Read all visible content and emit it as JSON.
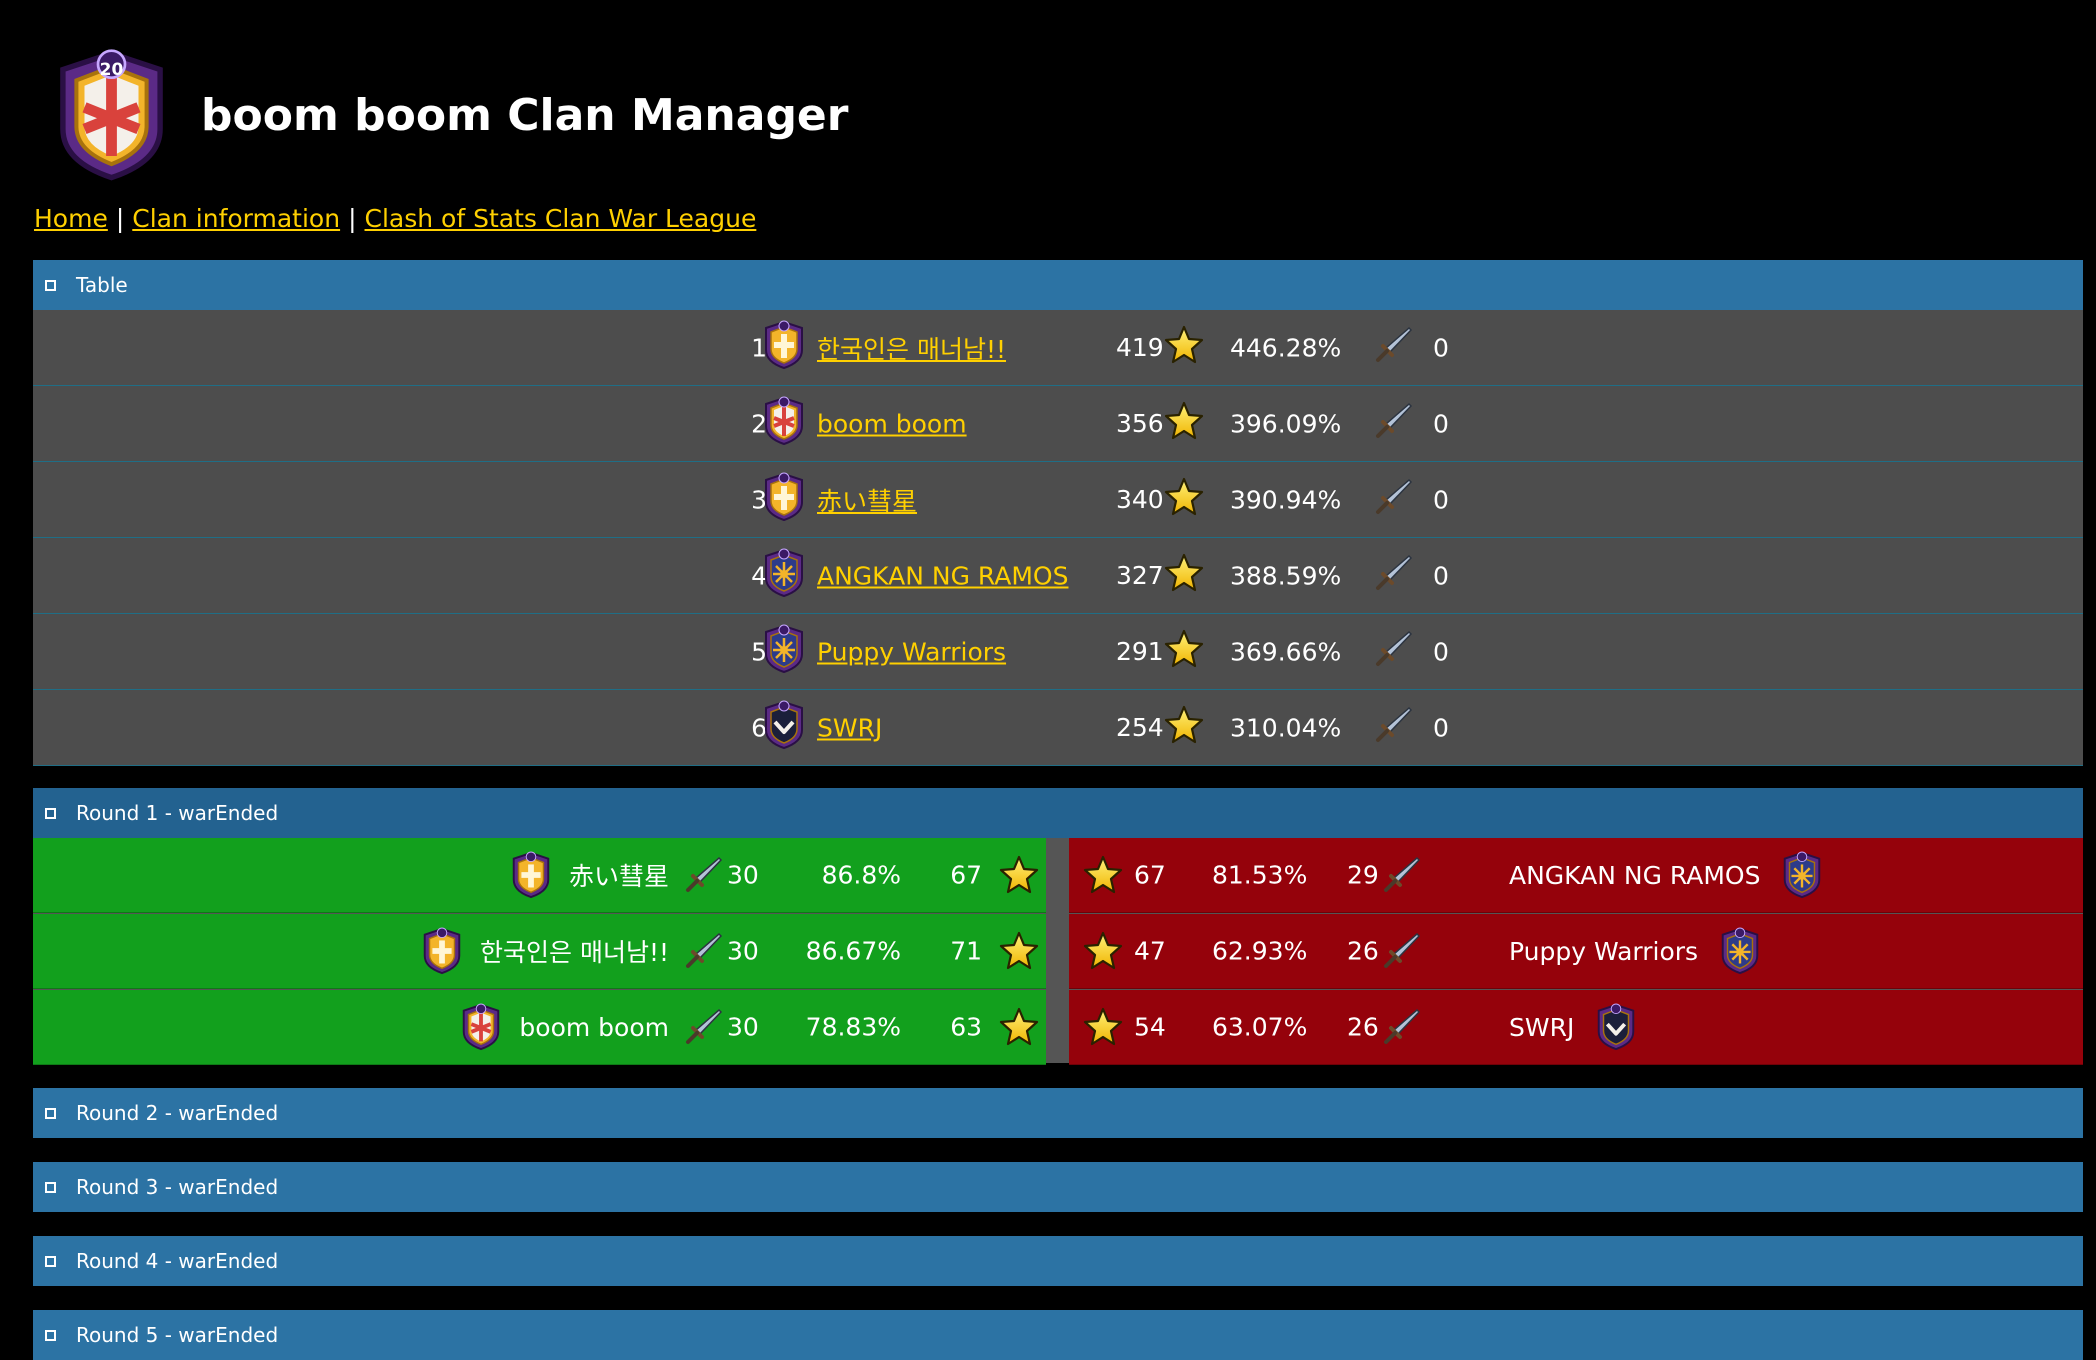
{
  "header": {
    "title": "boom boom Clan Manager",
    "badge_level": "20"
  },
  "nav": {
    "home": "Home",
    "clan_info": "Clan information",
    "cwl": "Clash of Stats Clan War League",
    "separator": "|"
  },
  "panels": {
    "table": "Table",
    "round1": "Round 1 - warEnded",
    "round2": "Round 2 - warEnded",
    "round3": "Round 3 - warEnded",
    "round4": "Round 4 - warEnded",
    "round5": "Round 5 - warEnded"
  },
  "standings": [
    {
      "rank": "1.",
      "name": "한국인은 매너남!!",
      "stars": "419",
      "pct": "446.28%",
      "attacks": "0",
      "badge": "cross-badge"
    },
    {
      "rank": "2.",
      "name": "boom boom",
      "stars": "356",
      "pct": "396.09%",
      "attacks": "0",
      "badge": "shield-badge"
    },
    {
      "rank": "3.",
      "name": "赤い彗星",
      "stars": "340",
      "pct": "390.94%",
      "attacks": "0",
      "badge": "cross-badge"
    },
    {
      "rank": "4.",
      "name": "ANGKAN NG RAMOS",
      "stars": "327",
      "pct": "388.59%",
      "attacks": "0",
      "badge": "sun-badge"
    },
    {
      "rank": "5.",
      "name": "Puppy Warriors",
      "stars": "291",
      "pct": "369.66%",
      "attacks": "0",
      "badge": "sun-badge"
    },
    {
      "rank": "6.",
      "name": "SWRJ",
      "stars": "254",
      "pct": "310.04%",
      "attacks": "0",
      "badge": "chevron-badge"
    }
  ],
  "round1": [
    {
      "left": {
        "name": "赤い彗星",
        "attacks": "30",
        "pct": "86.8%",
        "stars": "67",
        "badge": "cross-badge"
      },
      "right": {
        "name": "ANGKAN NG RAMOS",
        "attacks": "29",
        "pct": "81.53%",
        "stars": "67",
        "badge": "sun-badge"
      }
    },
    {
      "left": {
        "name": "한국인은 매너남!!",
        "attacks": "30",
        "pct": "86.67%",
        "stars": "71",
        "badge": "cross-badge"
      },
      "right": {
        "name": "Puppy Warriors",
        "attacks": "26",
        "pct": "62.93%",
        "stars": "47",
        "badge": "sun-badge"
      }
    },
    {
      "left": {
        "name": "boom boom",
        "attacks": "30",
        "pct": "78.83%",
        "stars": "63",
        "badge": "shield-badge"
      },
      "right": {
        "name": "SWRJ",
        "attacks": "26",
        "pct": "63.07%",
        "stars": "54",
        "badge": "chevron-badge"
      }
    }
  ],
  "colors": {
    "link": "#ffd000",
    "panel": "#2c73a4",
    "standings_row": "#4d4d4d",
    "winner": "#12a01d",
    "loser": "#95020b"
  }
}
